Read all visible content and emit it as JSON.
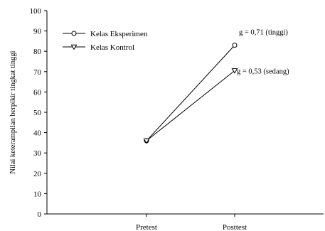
{
  "chart_data": {
    "type": "line",
    "categories": [
      "Pretest",
      "Posttest"
    ],
    "series": [
      {
        "name": "Kelas Eksperimen",
        "marker": "circle",
        "values": [
          36,
          83
        ]
      },
      {
        "name": "Kelas Kontrol",
        "marker": "triangle-down",
        "values": [
          36,
          70.5
        ]
      }
    ],
    "annotations": [
      {
        "text": "g = 0,71 (tinggi)",
        "series": 0
      },
      {
        "text": "g = 0,53 (sedang)",
        "series": 1
      }
    ],
    "xlabel": "",
    "ylabel": "Nilai keterampilan berpikir tingkat tinggi",
    "ylim": [
      0,
      100
    ],
    "yticks": [
      0,
      10,
      20,
      30,
      40,
      50,
      60,
      70,
      80,
      90,
      100
    ],
    "legend": "top-left",
    "grid": false
  }
}
